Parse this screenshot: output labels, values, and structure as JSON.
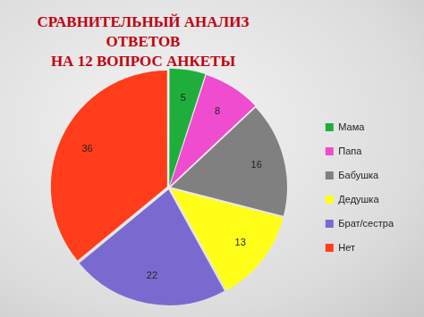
{
  "chart_data": {
    "type": "pie",
    "title": [
      "СРАВНИТЕЛЬНЫЙ АНАЛИЗ ОТВЕТОВ",
      "НА 12 ВОПРОС АНКЕТЫ"
    ],
    "categories": [
      "Мама",
      "Папа",
      "Бабушка",
      "Дедушка",
      "Брат/сестра",
      "Нет"
    ],
    "values": [
      5,
      8,
      16,
      13,
      22,
      36
    ],
    "colors": [
      "#1fae3c",
      "#f04ccf",
      "#808080",
      "#ffff1a",
      "#7a6ad0",
      "#ff3d1a"
    ],
    "legend": "right",
    "data_labels": true
  }
}
